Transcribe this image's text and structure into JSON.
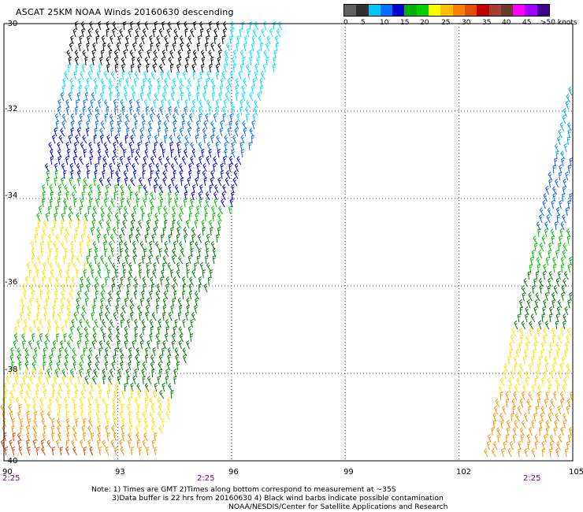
{
  "title": "ASCAT 25KM NOAA Winds 20160630 descending",
  "legend": {
    "labels": [
      "0",
      "5",
      "10",
      "15",
      "20",
      "25",
      "30",
      "35",
      "40",
      "45",
      ">50 knots"
    ],
    "colors": [
      "#606060",
      "#303030",
      "#00c8ff",
      "#0070ff",
      "#0000d0",
      "#00b000",
      "#00d000",
      "#ffff00",
      "#ffc000",
      "#ff8000",
      "#e05000",
      "#c00000",
      "#a04030",
      "#6a3a2a",
      "#ff00ff",
      "#a000ff",
      "#400090"
    ]
  },
  "map": {
    "lat_labels": [
      "-30",
      "-32",
      "-34",
      "-36",
      "-38",
      "-40"
    ],
    "lon_labels": [
      "90",
      "93",
      "96",
      "99",
      "102",
      "105"
    ],
    "time_labels": [
      "2:25",
      "2:25",
      "2:25"
    ],
    "lat_range": [
      -40,
      -30
    ],
    "lon_range": [
      90,
      105
    ],
    "gridlines": "dotted",
    "swaths": [
      {
        "name": "left",
        "speed_band_colors_north_to_south": [
          "#000000",
          "#00e0ff",
          "#0070ff",
          "#0000d0",
          "#00c000",
          "#007a00",
          "#ffe000",
          "#ff9000",
          "#d04000"
        ]
      },
      {
        "name": "right",
        "speed_band_colors_north_to_south": [
          "#00a0ff",
          "#0060ff",
          "#00c000",
          "#007a00",
          "#ffe000",
          "#ff9000"
        ]
      }
    ]
  },
  "notes": {
    "line1": "Note: 1) Times are GMT 2)Times along bottom correspond to measurement at ~35S",
    "line2": "3)Data buffer is 22 hrs from 20160630 4) Black wind barbs indicate possible contamination",
    "line3": "NOAA/NESDIS/Center for Satellite Applications and Research"
  }
}
